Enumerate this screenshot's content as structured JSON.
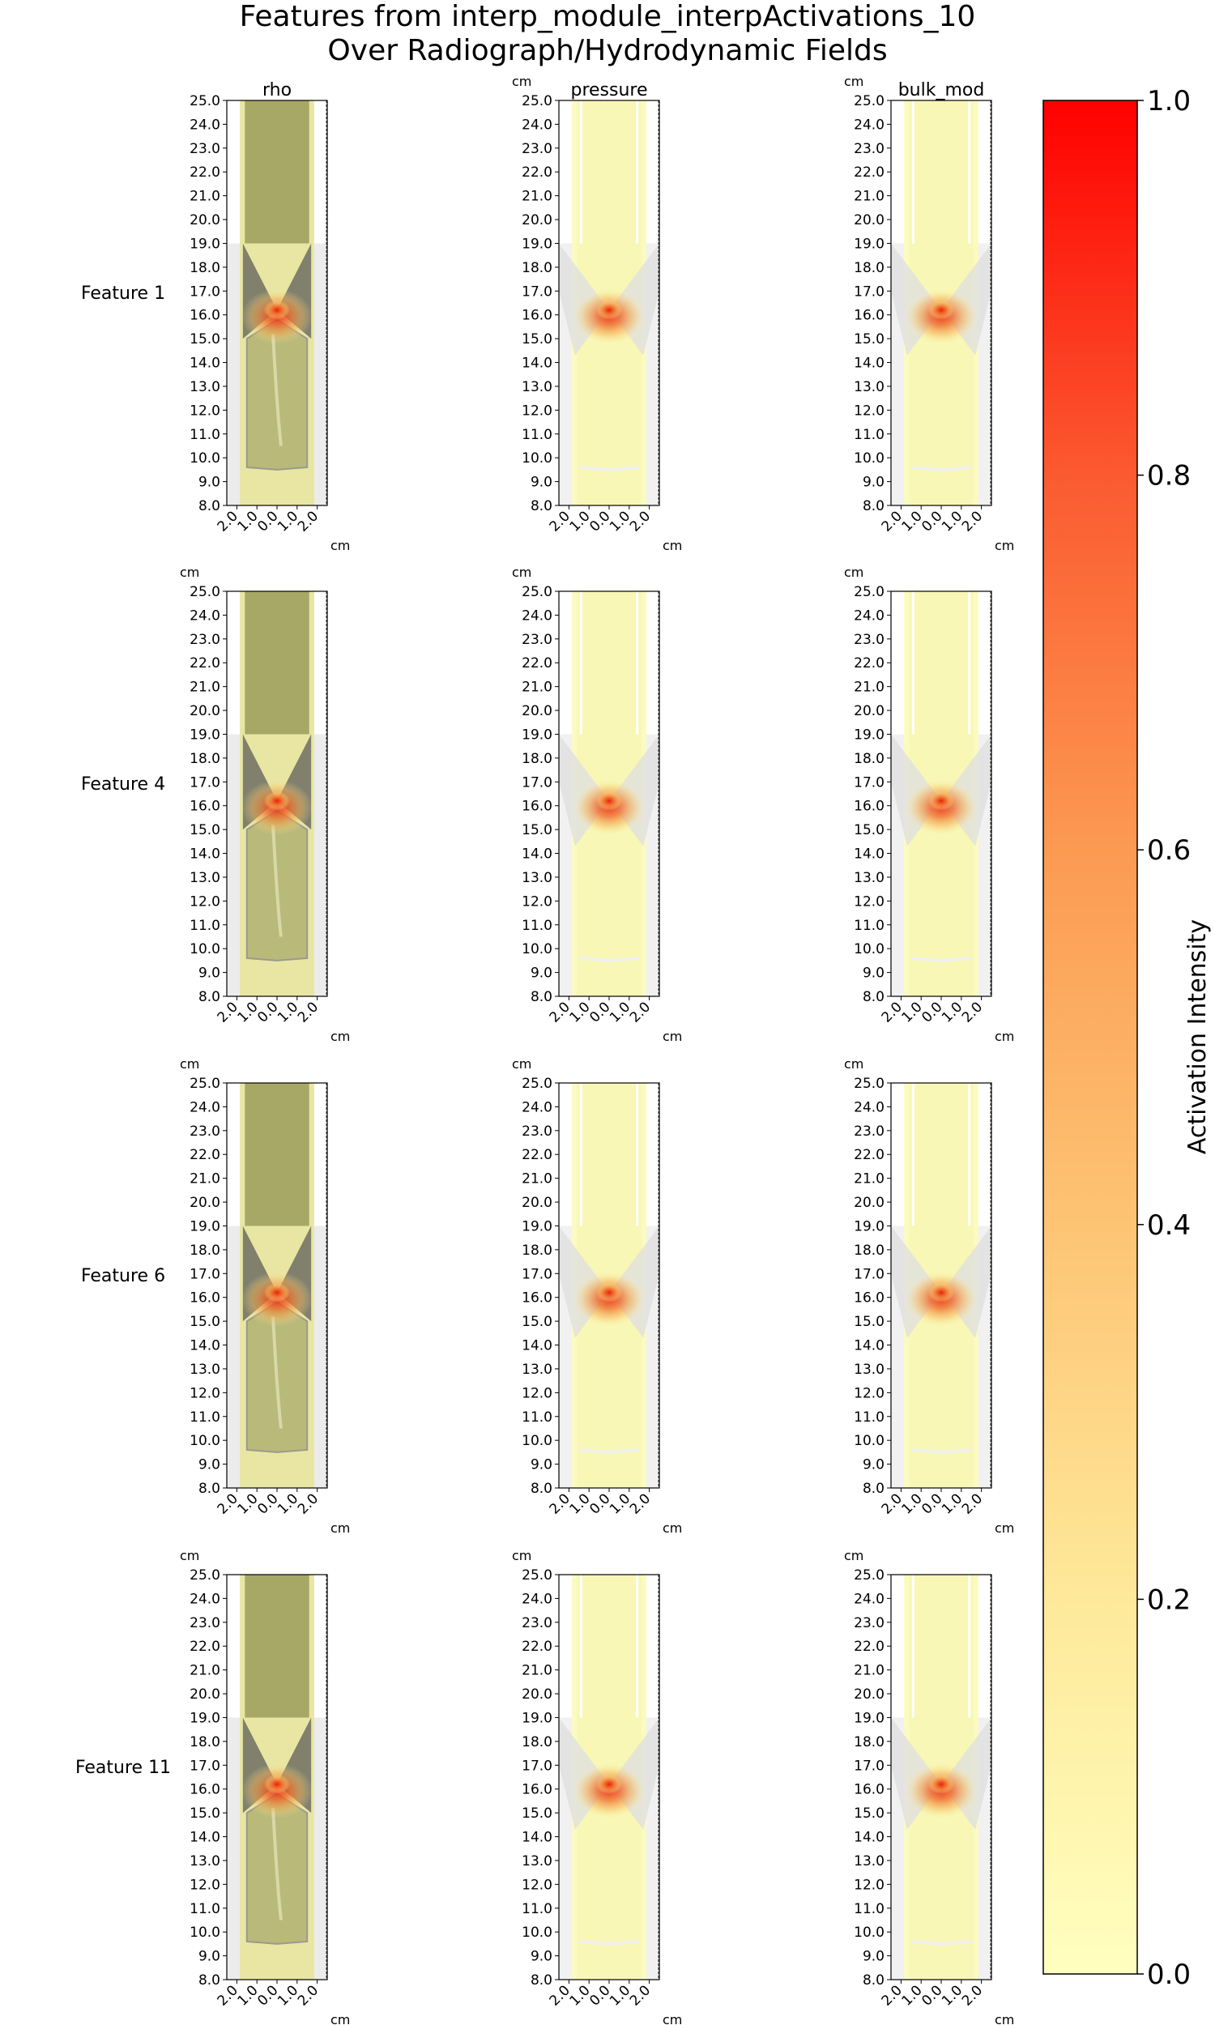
{
  "title_line1": "Features from interp_module_interpActivations_10",
  "title_line2": "Over Radiograph/Hydrodynamic Fields",
  "colors": {
    "rho_outer": "#e8e6a2",
    "rho_inner": "#a8a866",
    "rho_dark": "#6d6d63",
    "field_base": "#fbfbc0",
    "field_band": "#f7f6b2",
    "side_gray": "#ebebeb",
    "activation_low": "#ffffbf",
    "activation_mid": "#fdae61",
    "activation_high": "#ff0000"
  },
  "colorbar": {
    "label": "Activation Intensity",
    "ticks": [
      "0.0",
      "0.2",
      "0.4",
      "0.6",
      "0.8",
      "1.0"
    ],
    "range": [
      0,
      1
    ]
  },
  "chart_data": {
    "type": "heatmap",
    "columns": [
      "rho",
      "pressure",
      "bulk_mod"
    ],
    "rows": [
      "Feature 1",
      "Feature 4",
      "Feature 6",
      "Feature 11"
    ],
    "axis_unit": "cm",
    "x_tick_labels": [
      "2.0",
      "1.0",
      "0.0",
      "1.0",
      "2.0"
    ],
    "y_tick_labels": [
      "8.0",
      "9.0",
      "10.0",
      "11.0",
      "12.0",
      "13.0",
      "14.0",
      "15.0",
      "16.0",
      "17.0",
      "18.0",
      "19.0",
      "20.0",
      "21.0",
      "22.0",
      "23.0",
      "24.0",
      "25.0"
    ],
    "y_range": [
      8.0,
      25.0
    ],
    "x_range": [
      -2.5,
      2.5
    ],
    "hotspot": {
      "x": 0.0,
      "y": 16.2
    },
    "shoulder_y": 19.0,
    "bottom_edge_y": 9.5
  }
}
